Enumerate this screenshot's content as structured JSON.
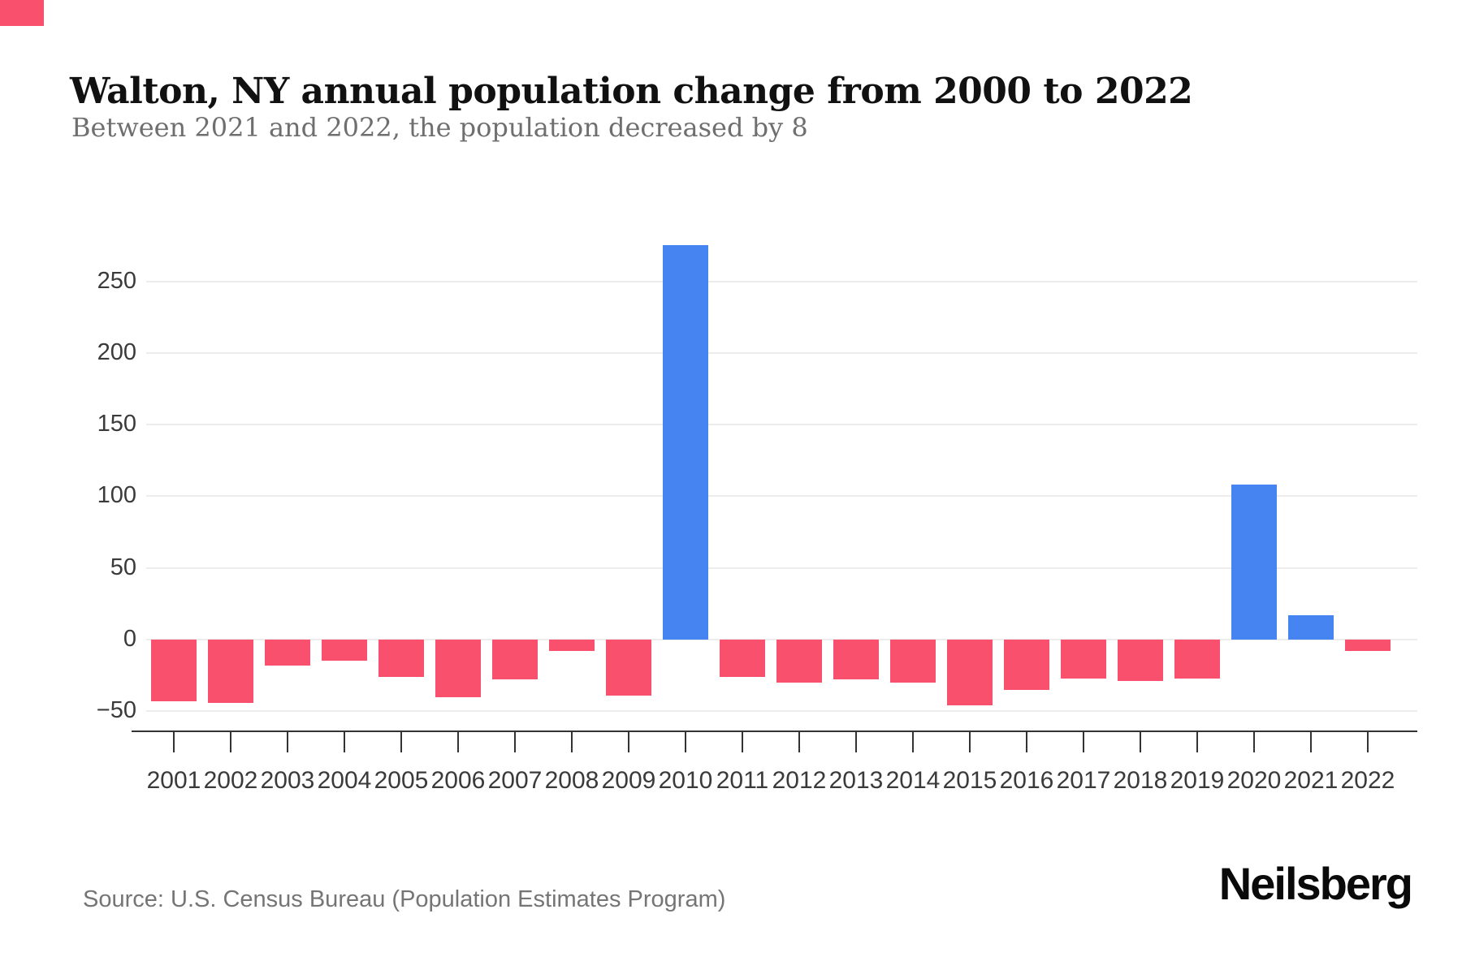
{
  "page": {
    "title": "Walton, NY annual population change from 2000 to 2022",
    "subtitle": "Between 2021 and 2022, the population decreased by 8",
    "source": "Source: U.S. Census Bureau (Population Estimates Program)",
    "brand": "Neilsberg"
  },
  "colors": {
    "positive_bar": "#4685F1",
    "negative_bar": "#F9516D",
    "accent": "#F9516D"
  },
  "chart_data": {
    "type": "bar",
    "title": "Walton, NY annual population change from 2000 to 2022",
    "subtitle": "Between 2021 and 2022, the population decreased by 8",
    "xlabel": "",
    "ylabel": "",
    "categories": [
      "2001",
      "2002",
      "2003",
      "2004",
      "2005",
      "2006",
      "2007",
      "2008",
      "2009",
      "2010",
      "2011",
      "2012",
      "2013",
      "2014",
      "2015",
      "2016",
      "2017",
      "2018",
      "2019",
      "2020",
      "2021",
      "2022"
    ],
    "values": [
      -43,
      -44,
      -18,
      -15,
      -26,
      -40,
      -28,
      -8,
      -39,
      275,
      -26,
      -30,
      -28,
      -30,
      -46,
      -35,
      -27,
      -29,
      -27,
      108,
      17,
      -8
    ],
    "ylim": [
      -50,
      280
    ],
    "yticks": [
      250,
      200,
      150,
      100,
      50,
      0,
      -50
    ],
    "grid": true,
    "legend": "none",
    "bar_color_positive": "#4685F1",
    "bar_color_negative": "#F9516D"
  }
}
